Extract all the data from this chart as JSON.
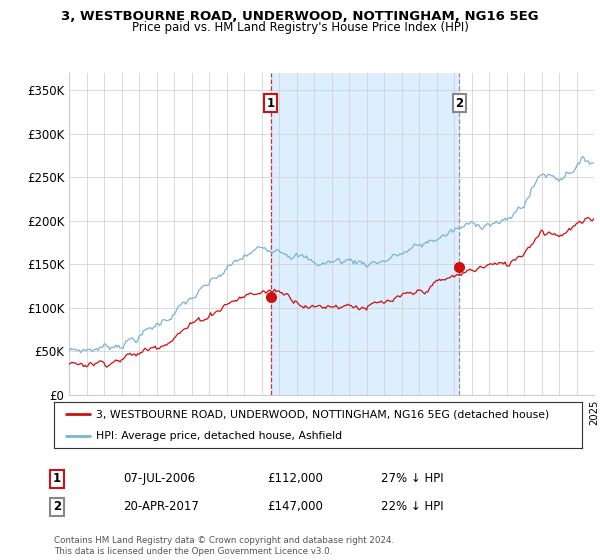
{
  "title": "3, WESTBOURNE ROAD, UNDERWOOD, NOTTINGHAM, NG16 5EG",
  "subtitle": "Price paid vs. HM Land Registry's House Price Index (HPI)",
  "legend_line1": "3, WESTBOURNE ROAD, UNDERWOOD, NOTTINGHAM, NG16 5EG (detached house)",
  "legend_line2": "HPI: Average price, detached house, Ashfield",
  "footnote": "Contains HM Land Registry data © Crown copyright and database right 2024.\nThis data is licensed under the Open Government Licence v3.0.",
  "sale1_date": "07-JUL-2006",
  "sale1_price": 112000,
  "sale1_label": "27% ↓ HPI",
  "sale2_date": "20-APR-2017",
  "sale2_price": 147000,
  "sale2_label": "22% ↓ HPI",
  "hpi_color": "#7ab3d4",
  "price_color": "#cc1111",
  "vline1_color": "#cc1111",
  "vline2_color": "#888888",
  "shade_color": "#ddeeff",
  "ylim": [
    0,
    370000
  ],
  "yticks": [
    0,
    50000,
    100000,
    150000,
    200000,
    250000,
    300000,
    350000
  ],
  "ytick_labels": [
    "£0",
    "£50K",
    "£100K",
    "£150K",
    "£200K",
    "£250K",
    "£300K",
    "£350K"
  ],
  "background_color": "#ffffff",
  "grid_color": "#cccccc",
  "sale1_year": 2006.52,
  "sale2_year": 2017.3
}
